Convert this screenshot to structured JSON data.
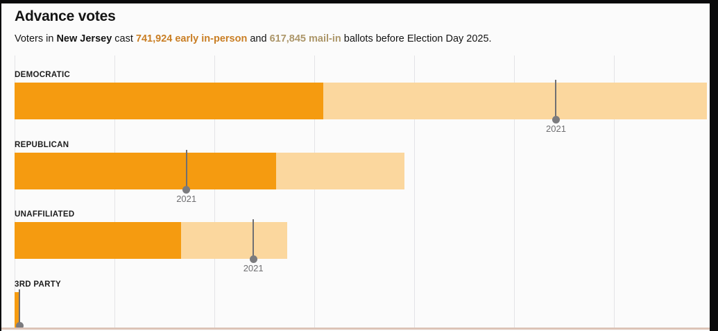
{
  "header": {
    "title": "Advance votes",
    "subtitle": {
      "prefix": "Voters in ",
      "state": "New Jersey",
      "cast": " cast ",
      "early": "741,924 early in-person",
      "and": " and ",
      "mail": "617,845 mail-in",
      "suffix": " ballots before Election Day 2025."
    }
  },
  "colors": {
    "early_in_person_bar": "#F59B10",
    "mail_in_bar": "#FBD79E",
    "early_in_person_text": "#C97E24",
    "mail_in_text": "#AC9669",
    "marker": "#6F6F72",
    "gridline": "#E3E3E6",
    "frame": "#0A0A0B",
    "bottom_rule": "#DCC3B7"
  },
  "chart_data": {
    "type": "bar",
    "orientation": "horizontal",
    "stacked": true,
    "title": "Advance votes",
    "categories": [
      "DEMOCRATIC",
      "REPUBLICAN",
      "UNAFFILIATED",
      "3RD PARTY"
    ],
    "series": [
      {
        "name": "early in-person",
        "color": "#F59B10",
        "values": [
          309000,
          262000,
          167000,
          4000
        ]
      },
      {
        "name": "mail-in",
        "color": "#FBD79E",
        "values": [
          384000,
          128000,
          106000,
          500
        ]
      }
    ],
    "markers": {
      "label": "2021",
      "values": [
        542000,
        172000,
        239000,
        5000
      ],
      "label_visible": [
        true,
        true,
        true,
        false
      ]
    },
    "x_axis": {
      "min": 0,
      "max": 700000,
      "gridline_step": 100000,
      "tick_labels_visible": false,
      "grid": true
    },
    "totals": {
      "early_in_person": 741924,
      "mail_in": 617845
    },
    "legend_position": "none"
  }
}
